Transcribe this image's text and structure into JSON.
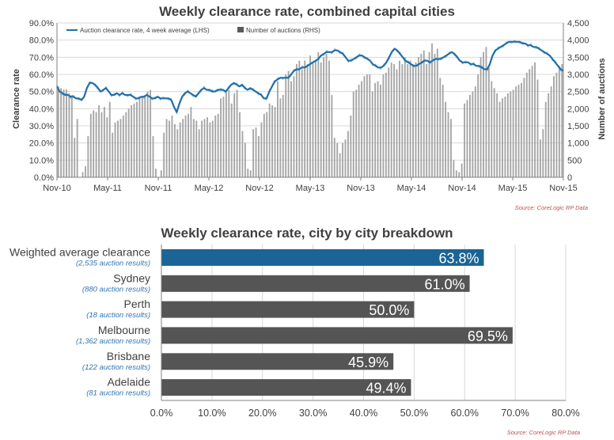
{
  "chart_data": [
    {
      "type": "bar+line",
      "title": "Weekly clearance rate, combined capital cities",
      "ylabel_left": "Clearance rate",
      "ylabel_right": "Number of auctions",
      "ylim_left": [
        0,
        90
      ],
      "ylim_right": [
        0,
        4500
      ],
      "yticks_left": [
        "0.0%",
        "10.0%",
        "20.0%",
        "30.0%",
        "40.0%",
        "50.0%",
        "60.0%",
        "70.0%",
        "80.0%",
        "90.0%"
      ],
      "yticks_right": [
        "0",
        "500",
        "1,000",
        "1,500",
        "2,000",
        "2,500",
        "3,000",
        "3,500",
        "4,000",
        "4,500"
      ],
      "xticks": [
        "Nov-10",
        "May-11",
        "Nov-11",
        "May-12",
        "Nov-12",
        "May-13",
        "Nov-13",
        "May-14",
        "Nov-14",
        "May-15",
        "Nov-15"
      ],
      "legend_position": "top-left",
      "grid": "horizontal",
      "series": [
        {
          "name": "Auction clearance rate, 4 week average (LHS)",
          "kind": "line",
          "axis": "left",
          "unit": "%",
          "color": "#1f6fa8",
          "values": [
            53,
            50,
            49,
            48,
            48,
            47,
            47,
            46,
            46,
            45,
            47,
            52,
            55,
            55,
            54,
            52,
            50,
            51,
            52,
            50,
            48,
            48,
            49,
            48,
            49,
            48,
            48,
            48,
            47,
            46,
            46,
            47,
            47,
            48,
            47,
            46,
            46,
            47,
            46,
            46,
            46,
            46,
            45,
            41,
            38,
            43,
            47,
            49,
            50,
            49,
            48,
            47,
            49,
            51,
            52,
            51,
            51,
            50,
            50,
            51,
            51,
            51,
            50,
            52,
            54,
            55,
            54,
            53,
            54,
            52,
            51,
            52,
            51,
            50,
            49,
            48,
            46,
            46,
            50,
            53,
            56,
            57,
            58,
            58,
            58,
            58,
            60,
            62,
            63,
            63,
            64,
            64,
            65,
            66,
            67,
            68,
            69,
            71,
            72,
            73,
            73,
            73,
            74,
            74,
            73,
            72,
            70,
            68,
            68,
            69,
            70,
            71,
            71,
            70,
            69,
            68,
            66,
            65,
            64,
            64,
            65,
            67,
            70,
            73,
            75,
            74,
            72,
            70,
            68,
            67,
            66,
            65,
            65,
            66,
            67,
            68,
            68,
            67,
            68,
            69,
            69,
            69,
            70,
            71,
            72,
            73,
            72,
            70,
            68,
            67,
            67,
            67,
            66,
            66,
            65,
            65,
            64,
            63,
            63,
            66,
            71,
            74,
            75,
            76,
            77,
            78,
            79,
            79,
            79,
            79,
            79,
            78,
            78,
            77,
            77,
            76,
            76,
            75,
            74,
            73,
            72,
            71,
            69,
            67,
            65,
            63,
            62
          ]
        },
        {
          "name": "Number of auctions (RHS)",
          "kind": "bar",
          "axis": "right",
          "color": "#a6a6a6",
          "values": [
            2650,
            2600,
            2560,
            2560,
            2450,
            2400,
            1150,
            1700,
            0,
            150,
            320,
            1200,
            1850,
            1950,
            1900,
            2100,
            1900,
            2050,
            1750,
            2200,
            1300,
            1600,
            1650,
            1700,
            1800,
            1900,
            2000,
            2100,
            2150,
            2200,
            2300,
            2350,
            2400,
            2500,
            2550,
            1200,
            250,
            0,
            200,
            1300,
            1700,
            1650,
            1800,
            1550,
            1400,
            1600,
            1700,
            1800,
            1850,
            2050,
            1700,
            1650,
            1400,
            1650,
            1700,
            1750,
            1600,
            1650,
            1800,
            1850,
            2300,
            2350,
            2500,
            2550,
            2150,
            2450,
            2550,
            1900,
            1350,
            1000,
            250,
            200,
            1400,
            1450,
            1200,
            1600,
            1850,
            1900,
            2150,
            2100,
            2050,
            2800,
            2300,
            2400,
            3000,
            3100,
            2800,
            2950,
            3300,
            3400,
            3150,
            3400,
            3300,
            3550,
            3350,
            3400,
            3650,
            3350,
            3500,
            3600,
            3400,
            2400,
            1150,
            1000,
            700,
            1000,
            1100,
            1350,
            1800,
            2500,
            2550,
            2700,
            2800,
            2950,
            3000,
            3000,
            2500,
            2750,
            2800,
            2700,
            3000,
            3050,
            3200,
            3350,
            3300,
            3150,
            3400,
            3300,
            3500,
            3300,
            3400,
            3300,
            3350,
            3500,
            3600,
            3700,
            3300,
            3650,
            3900,
            3600,
            3750,
            2900,
            2700,
            2200,
            1900,
            1700,
            500,
            200,
            150,
            400,
            2150,
            2250,
            2400,
            2500,
            2650,
            3000,
            3500,
            3650,
            3800,
            3200,
            2800,
            2600,
            2450,
            2200,
            2300,
            2350,
            2450,
            2500,
            2550,
            2650,
            2700,
            2750,
            2900,
            3050,
            3150,
            3250,
            3350,
            2850,
            1100,
            1400,
            2200,
            2450,
            2650,
            2950,
            3050,
            3250,
            3300
          ]
        }
      ],
      "source": "Source: CoreLogic  RP Data"
    },
    {
      "type": "bar",
      "orientation": "horizontal",
      "title": "Weekly clearance rate, city by city breakdown",
      "categories": [
        "Weighted average clearance",
        "Sydney",
        "Perth",
        "Melbourne",
        "Brisbane",
        "Adelaide"
      ],
      "sublabels": [
        "(2,535 auction results)",
        "(880 auction results)",
        "(18 auction results)",
        "(1,362 auction results)",
        "(122 auction results)",
        "(81 auction results)"
      ],
      "values": [
        63.8,
        61.0,
        50.0,
        69.5,
        45.9,
        49.4
      ],
      "value_labels": [
        "63.8%",
        "61.0%",
        "50.0%",
        "69.5%",
        "45.9%",
        "49.4%"
      ],
      "bar_colors": [
        "#1a6496",
        "#555555",
        "#555555",
        "#555555",
        "#555555",
        "#555555"
      ],
      "xlim": [
        0,
        80
      ],
      "xticks": [
        "0.0%",
        "10.0%",
        "20.0%",
        "30.0%",
        "40.0%",
        "50.0%",
        "60.0%",
        "70.0%",
        "80.0%"
      ],
      "grid": "vertical",
      "source": "Source: CoreLogic  RP Data"
    }
  ]
}
